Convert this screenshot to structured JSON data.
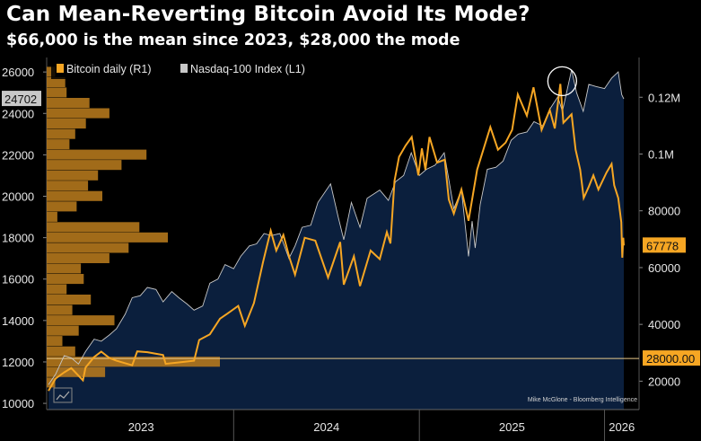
{
  "title": "Can Mean-Reverting Bitcoin Avoid Its Mode?",
  "subtitle": "$66,000 is the mean since 2023, $28,000 the mode",
  "credit": "Mike McGlone - Bloomberg Intelligence",
  "colors": {
    "background": "#000000",
    "plot_area": "#0b1f3d",
    "bitcoin": "#f6a623",
    "nasdaq": "#c8c8c8",
    "histogram": "#b77a1c",
    "mode_line": "#e8c98a"
  },
  "chart_data": {
    "type": "line",
    "legend": {
      "position": "top-left",
      "entries": [
        "Bitcoin daily (R1)",
        "Nasdaq-100 Index (L1)"
      ]
    },
    "x_axis": {
      "labels": [
        "2023",
        "2024",
        "2025",
        "2026"
      ],
      "range": [
        "2023-01",
        "2026-02"
      ]
    },
    "y_left": {
      "ticks": [
        10000,
        12000,
        14000,
        16000,
        18000,
        20000,
        22000,
        24000,
        26000
      ],
      "range": [
        9700,
        26700
      ]
    },
    "y_right": {
      "ticks": [
        "20000",
        "40000",
        "60000",
        "80000",
        "0.1M",
        "0.12M"
      ],
      "tick_values": [
        20000,
        40000,
        60000,
        80000,
        100000,
        120000
      ],
      "range": [
        10000,
        134000
      ]
    },
    "markers": {
      "left_last": "24702",
      "right_last": "67778",
      "mode": "28000.00"
    },
    "series": [
      {
        "name": "Nasdaq-100 Index (L1)",
        "axis": "left",
        "points": [
          [
            "2023-01-01",
            10900
          ],
          [
            "2023-01-15",
            11400
          ],
          [
            "2023-02-01",
            12300
          ],
          [
            "2023-02-15",
            12200
          ],
          [
            "2023-03-01",
            11900
          ],
          [
            "2023-03-15",
            12500
          ],
          [
            "2023-04-01",
            13100
          ],
          [
            "2023-04-15",
            13000
          ],
          [
            "2023-05-01",
            13300
          ],
          [
            "2023-05-15",
            13600
          ],
          [
            "2023-06-01",
            14300
          ],
          [
            "2023-06-15",
            15100
          ],
          [
            "2023-07-01",
            15200
          ],
          [
            "2023-07-15",
            15600
          ],
          [
            "2023-08-01",
            15500
          ],
          [
            "2023-08-15",
            14900
          ],
          [
            "2023-09-01",
            15400
          ],
          [
            "2023-09-15",
            15100
          ],
          [
            "2023-10-01",
            14800
          ],
          [
            "2023-10-15",
            14500
          ],
          [
            "2023-11-01",
            14700
          ],
          [
            "2023-11-15",
            15800
          ],
          [
            "2023-12-01",
            16000
          ],
          [
            "2023-12-15",
            16700
          ],
          [
            "2024-01-01",
            16500
          ],
          [
            "2024-01-15",
            17100
          ],
          [
            "2024-02-01",
            17600
          ],
          [
            "2024-02-15",
            17700
          ],
          [
            "2024-03-01",
            18200
          ],
          [
            "2024-03-15",
            18100
          ],
          [
            "2024-04-01",
            18200
          ],
          [
            "2024-04-19",
            17000
          ],
          [
            "2024-05-01",
            17600
          ],
          [
            "2024-05-15",
            18500
          ],
          [
            "2024-06-01",
            18600
          ],
          [
            "2024-06-15",
            19700
          ],
          [
            "2024-07-10",
            20600
          ],
          [
            "2024-07-25",
            19000
          ],
          [
            "2024-08-05",
            17900
          ],
          [
            "2024-08-20",
            19700
          ],
          [
            "2024-09-06",
            18500
          ],
          [
            "2024-09-20",
            19900
          ],
          [
            "2024-10-15",
            20300
          ],
          [
            "2024-11-01",
            19800
          ],
          [
            "2024-11-15",
            20700
          ],
          [
            "2024-12-01",
            21000
          ],
          [
            "2024-12-16",
            22100
          ],
          [
            "2025-01-01",
            21000
          ],
          [
            "2025-01-15",
            21300
          ],
          [
            "2025-02-01",
            21500
          ],
          [
            "2025-02-19",
            22100
          ],
          [
            "2025-03-10",
            19400
          ],
          [
            "2025-03-25",
            20300
          ],
          [
            "2025-04-08",
            17100
          ],
          [
            "2025-04-15",
            18800
          ],
          [
            "2025-04-21",
            17500
          ],
          [
            "2025-05-01",
            19600
          ],
          [
            "2025-05-15",
            21300
          ],
          [
            "2025-06-01",
            21400
          ],
          [
            "2025-06-15",
            21700
          ],
          [
            "2025-07-01",
            22700
          ],
          [
            "2025-07-15",
            23000
          ],
          [
            "2025-08-01",
            23100
          ],
          [
            "2025-08-15",
            23600
          ],
          [
            "2025-09-01",
            23400
          ],
          [
            "2025-09-15",
            24200
          ],
          [
            "2025-10-01",
            24800
          ],
          [
            "2025-10-10",
            24100
          ],
          [
            "2025-10-28",
            26100
          ],
          [
            "2025-11-07",
            25000
          ],
          [
            "2025-11-20",
            24100
          ],
          [
            "2025-12-01",
            25400
          ],
          [
            "2025-12-15",
            25300
          ],
          [
            "2026-01-01",
            25200
          ],
          [
            "2026-01-15",
            25700
          ],
          [
            "2026-01-28",
            26000
          ],
          [
            "2026-02-04",
            24900
          ],
          [
            "2026-02-08",
            24702
          ]
        ]
      },
      {
        "name": "Bitcoin daily (R1)",
        "axis": "right",
        "points": [
          [
            "2023-01-01",
            16600
          ],
          [
            "2023-01-15",
            20900
          ],
          [
            "2023-02-01",
            23100
          ],
          [
            "2023-02-15",
            24600
          ],
          [
            "2023-03-10",
            20300
          ],
          [
            "2023-03-15",
            24800
          ],
          [
            "2023-04-01",
            28500
          ],
          [
            "2023-04-15",
            30400
          ],
          [
            "2023-05-01",
            28200
          ],
          [
            "2023-05-15",
            27200
          ],
          [
            "2023-06-15",
            25600
          ],
          [
            "2023-06-25",
            30500
          ],
          [
            "2023-07-15",
            30200
          ],
          [
            "2023-08-15",
            29200
          ],
          [
            "2023-08-20",
            26100
          ],
          [
            "2023-09-15",
            26600
          ],
          [
            "2023-10-15",
            27200
          ],
          [
            "2023-10-25",
            34500
          ],
          [
            "2023-11-15",
            36500
          ],
          [
            "2023-12-05",
            42000
          ],
          [
            "2023-12-20",
            43800
          ],
          [
            "2024-01-10",
            46500
          ],
          [
            "2024-01-23",
            39500
          ],
          [
            "2024-02-10",
            47500
          ],
          [
            "2024-02-28",
            62000
          ],
          [
            "2024-03-14",
            73000
          ],
          [
            "2024-03-25",
            66000
          ],
          [
            "2024-04-08",
            71500
          ],
          [
            "2024-04-20",
            63500
          ],
          [
            "2024-05-01",
            57500
          ],
          [
            "2024-05-20",
            70500
          ],
          [
            "2024-06-10",
            69500
          ],
          [
            "2024-07-05",
            56500
          ],
          [
            "2024-07-29",
            69000
          ],
          [
            "2024-08-05",
            54000
          ],
          [
            "2024-08-25",
            64000
          ],
          [
            "2024-09-06",
            53500
          ],
          [
            "2024-09-27",
            66000
          ],
          [
            "2024-10-15",
            63000
          ],
          [
            "2024-10-29",
            72500
          ],
          [
            "2024-11-05",
            68500
          ],
          [
            "2024-11-13",
            90500
          ],
          [
            "2024-11-22",
            99000
          ],
          [
            "2024-12-05",
            103000
          ],
          [
            "2024-12-17",
            106000
          ],
          [
            "2024-12-30",
            92500
          ],
          [
            "2025-01-06",
            102000
          ],
          [
            "2025-01-13",
            94500
          ],
          [
            "2025-01-21",
            106000
          ],
          [
            "2025-02-05",
            97000
          ],
          [
            "2025-02-20",
            98000
          ],
          [
            "2025-02-28",
            84000
          ],
          [
            "2025-03-10",
            79000
          ],
          [
            "2025-03-25",
            87500
          ],
          [
            "2025-04-08",
            76500
          ],
          [
            "2025-04-25",
            94500
          ],
          [
            "2025-05-21",
            109500
          ],
          [
            "2025-06-05",
            101500
          ],
          [
            "2025-06-20",
            104000
          ],
          [
            "2025-07-03",
            108500
          ],
          [
            "2025-07-14",
            121000
          ],
          [
            "2025-08-01",
            113500
          ],
          [
            "2025-08-14",
            123500
          ],
          [
            "2025-08-30",
            108500
          ],
          [
            "2025-09-15",
            115500
          ],
          [
            "2025-09-25",
            109000
          ],
          [
            "2025-10-06",
            124700
          ],
          [
            "2025-10-12",
            111000
          ],
          [
            "2025-10-28",
            114000
          ],
          [
            "2025-11-05",
            101500
          ],
          [
            "2025-11-14",
            94500
          ],
          [
            "2025-11-21",
            84500
          ],
          [
            "2025-12-01",
            88500
          ],
          [
            "2025-12-10",
            92500
          ],
          [
            "2025-12-20",
            87500
          ],
          [
            "2026-01-05",
            93500
          ],
          [
            "2026-01-15",
            96500
          ],
          [
            "2026-01-20",
            89000
          ],
          [
            "2026-01-28",
            84500
          ],
          [
            "2026-02-03",
            76000
          ],
          [
            "2026-02-05",
            63500
          ],
          [
            "2026-02-07",
            70500
          ],
          [
            "2026-02-08",
            67778
          ]
        ]
      }
    ],
    "histogram": {
      "description_axis": "left",
      "bins": [
        [
          26000,
          12
        ],
        [
          25500,
          26
        ],
        [
          25000,
          28
        ],
        [
          24500,
          60
        ],
        [
          24000,
          88
        ],
        [
          23500,
          55
        ],
        [
          23000,
          40
        ],
        [
          22500,
          32
        ],
        [
          22000,
          140
        ],
        [
          21500,
          105
        ],
        [
          21000,
          72
        ],
        [
          20500,
          58
        ],
        [
          20000,
          78
        ],
        [
          19500,
          42
        ],
        [
          19000,
          15
        ],
        [
          18500,
          130
        ],
        [
          18000,
          170
        ],
        [
          17500,
          115
        ],
        [
          17000,
          88
        ],
        [
          16500,
          48
        ],
        [
          16000,
          52
        ],
        [
          15500,
          28
        ],
        [
          15000,
          62
        ],
        [
          14500,
          36
        ],
        [
          14000,
          95
        ],
        [
          13500,
          45
        ],
        [
          13000,
          22
        ],
        [
          12500,
          40
        ],
        [
          12000,
          243
        ],
        [
          11500,
          82
        ],
        [
          11000,
          12
        ]
      ]
    }
  }
}
